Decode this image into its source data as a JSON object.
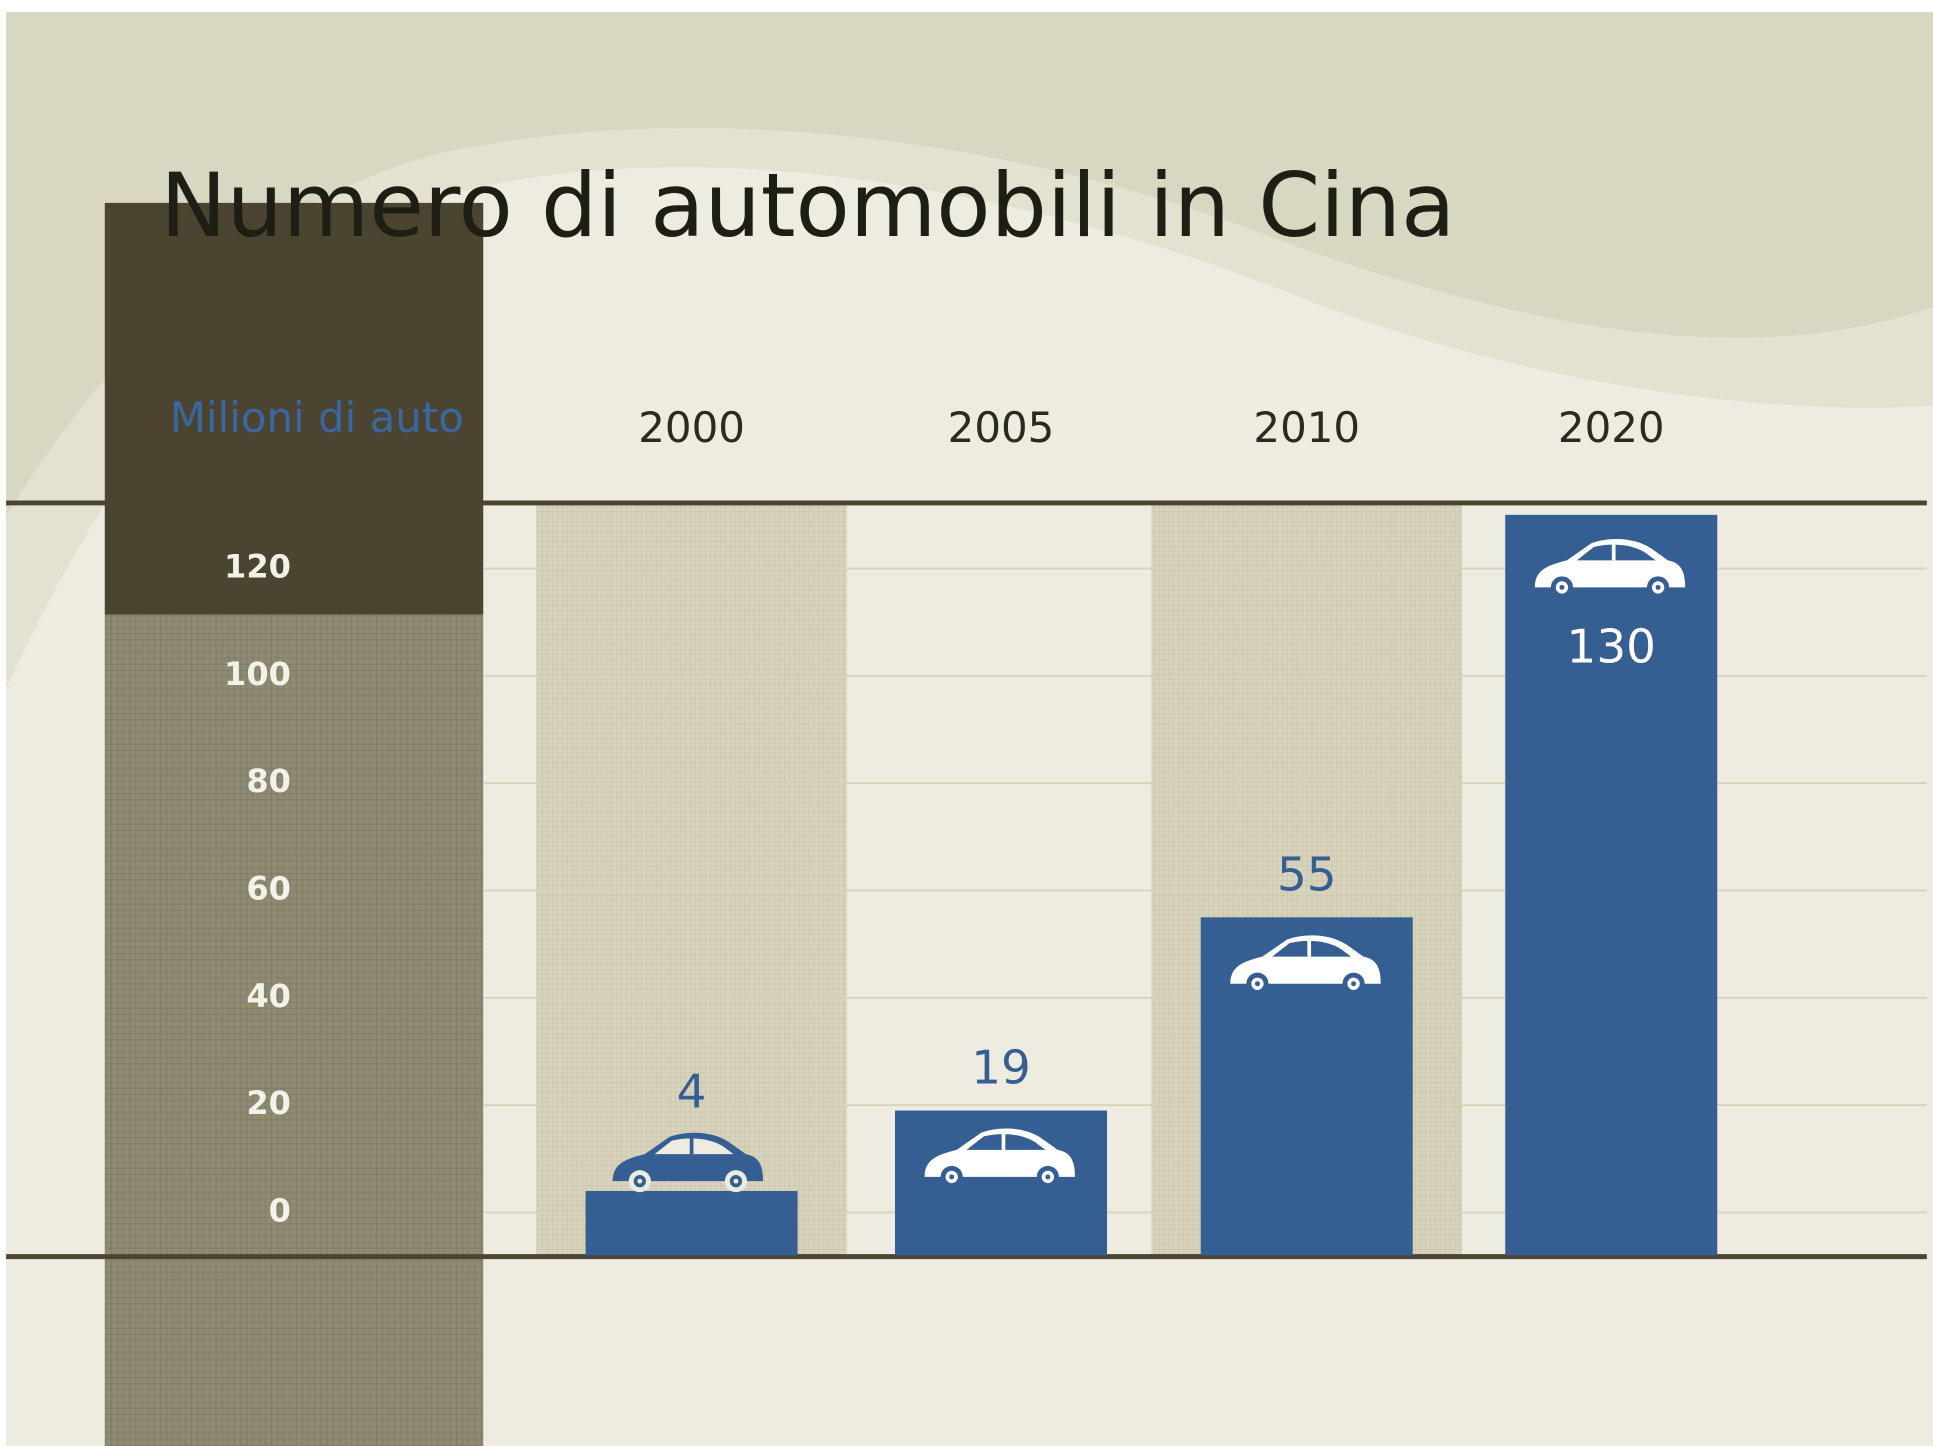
{
  "chart_data": {
    "type": "bar",
    "title": "Numero di automobili in Cina",
    "y_label": "Milioni di auto",
    "categories": [
      "2000",
      "2005",
      "2010",
      "2020"
    ],
    "values": [
      4,
      19,
      55,
      130
    ],
    "color": "#355e93",
    "ylim": [
      -8,
      132
    ],
    "yticks": [
      0,
      20,
      40,
      60,
      80,
      100,
      120
    ],
    "grid": true
  }
}
